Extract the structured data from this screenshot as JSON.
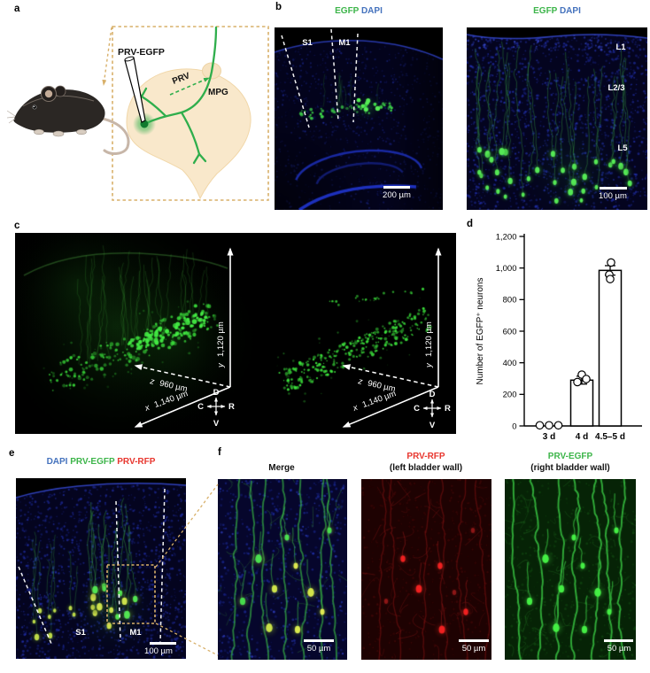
{
  "colors": {
    "egfp_green": "#3db54a",
    "dapi_blue": "#4472bd",
    "rfp_red": "#e8372f",
    "tan_dashed": "#d8b06a"
  },
  "panels": {
    "a": {
      "label": "a",
      "needle_label": "PRV-EGFP",
      "virus_label": "PRV",
      "ganglion_label": "MPG"
    },
    "b": {
      "label": "b",
      "overview": {
        "title_green": "EGFP",
        "title_blue": "DAPI",
        "region_s1": "S1",
        "region_m1": "M1",
        "scalebar": "200 µm"
      },
      "zoom": {
        "title_green": "EGFP",
        "title_blue": "DAPI",
        "layer_l1": "L1",
        "layer_l23": "L2/3",
        "layer_l5": "L5",
        "scalebar": "100 µm"
      }
    },
    "c": {
      "label": "c",
      "axes": {
        "y_letter": "y",
        "y_value": "1,120 µm",
        "z_letter": "z",
        "z_value": "960 µm",
        "x_letter": "x",
        "x_value": "1,140 µm"
      },
      "compass": {
        "up": "D",
        "down": "V",
        "left": "C",
        "right": "R"
      }
    },
    "d": {
      "label": "d"
    },
    "e": {
      "label": "e",
      "title_blue": "DAPI",
      "title_green": "PRV-EGFP",
      "title_red": "PRV-RFP",
      "region_s1": "S1",
      "region_m1": "M1",
      "scalebar": "100 µm"
    },
    "f": {
      "label": "f",
      "merge": {
        "title": "Merge",
        "scalebar": "50 µm"
      },
      "rfp": {
        "title": "PRV-RFP",
        "subtitle": "(left bladder wall)",
        "scalebar": "50 µm"
      },
      "egfp": {
        "title": "PRV-EGFP",
        "subtitle": "(right bladder wall)",
        "scalebar": "50 µm"
      }
    }
  },
  "chart_data": {
    "type": "bar",
    "categories": [
      "3 d",
      "4 d",
      "4.5–5 d"
    ],
    "values": [
      0,
      290,
      985
    ],
    "errors": [
      0,
      25,
      30
    ],
    "points": [
      [
        4,
        4,
        4
      ],
      [
        325,
        297,
        278
      ],
      [
        1035,
        958,
        930
      ]
    ],
    "title": "",
    "xlabel": "",
    "ylabel": "Number of EGFP⁺ neurons",
    "ylim": [
      0,
      1200
    ],
    "yticks": [
      0,
      200,
      400,
      600,
      800,
      1000,
      1200
    ],
    "ytick_labels": [
      "0",
      "200",
      "400",
      "600",
      "800",
      "1,000",
      "1,200"
    ],
    "bar_fill": "#ffffff",
    "bar_stroke": "#000000",
    "legend": "none",
    "grid": false
  }
}
